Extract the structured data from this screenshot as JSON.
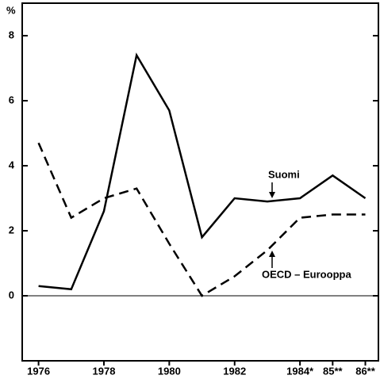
{
  "chart_data": {
    "type": "line",
    "y_unit": "%",
    "x": [
      1976,
      1977,
      1978,
      1979,
      1980,
      1981,
      1982,
      1983,
      1984,
      1985,
      1986
    ],
    "series": [
      {
        "name": "Suomi",
        "color": "#000000",
        "dash": false,
        "values": [
          0.3,
          0.2,
          2.6,
          7.4,
          5.7,
          1.8,
          3.0,
          2.9,
          3.0,
          3.7,
          3.0
        ]
      },
      {
        "name": "OECD – Eurooppa",
        "color": "#000000",
        "dash": true,
        "values": [
          4.7,
          2.4,
          3.0,
          3.3,
          1.6,
          0.0,
          0.6,
          1.4,
          2.4,
          2.5,
          2.5
        ]
      }
    ],
    "xlim": [
      1975.5,
      1986.4
    ],
    "ylim": [
      -2,
      9
    ],
    "xticks": [
      1976,
      1978,
      1980,
      1982,
      {
        "value": 1984,
        "label": "1984*"
      },
      {
        "value": 1985,
        "label": "85**"
      },
      {
        "value": 1986,
        "label": "86**"
      }
    ],
    "yticks": [
      0,
      2,
      4,
      6,
      8
    ],
    "grid": false
  }
}
